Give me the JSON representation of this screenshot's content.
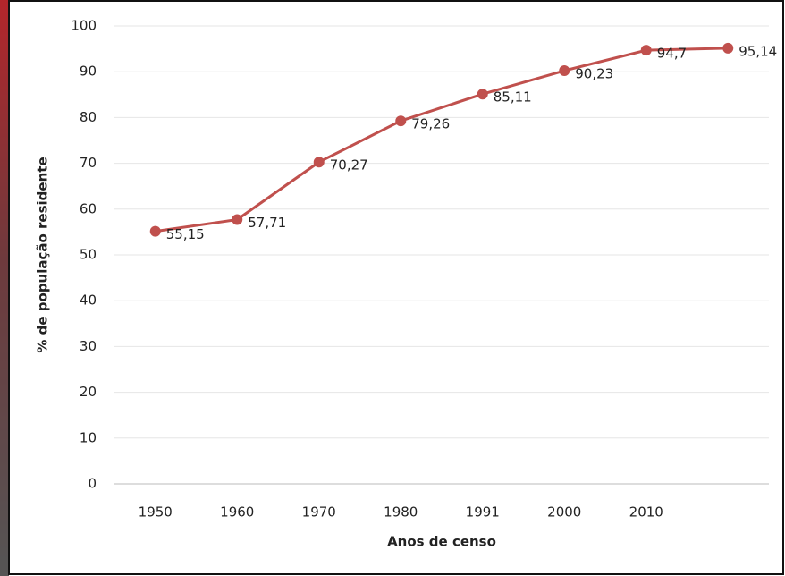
{
  "chart_data": {
    "type": "line",
    "x_label": "Anos de censo",
    "y_label": "% de população residente",
    "categories": [
      "1950",
      "1960",
      "1970",
      "1980",
      "1991",
      "2000",
      "2010",
      null
    ],
    "series": [
      {
        "name": null,
        "color": "#c0504d",
        "values": [
          55.15,
          57.71,
          70.27,
          79.26,
          85.11,
          90.23,
          94.7,
          95.14
        ],
        "value_labels": [
          "55,15",
          "57,71",
          "70,27",
          "79,26",
          "85,11",
          "90,23",
          "94,7",
          "95,14"
        ]
      }
    ],
    "ylim": [
      0,
      100
    ],
    "yticks": [
      0,
      10,
      20,
      30,
      40,
      50,
      60,
      70,
      80,
      90,
      100
    ],
    "grid": true
  }
}
